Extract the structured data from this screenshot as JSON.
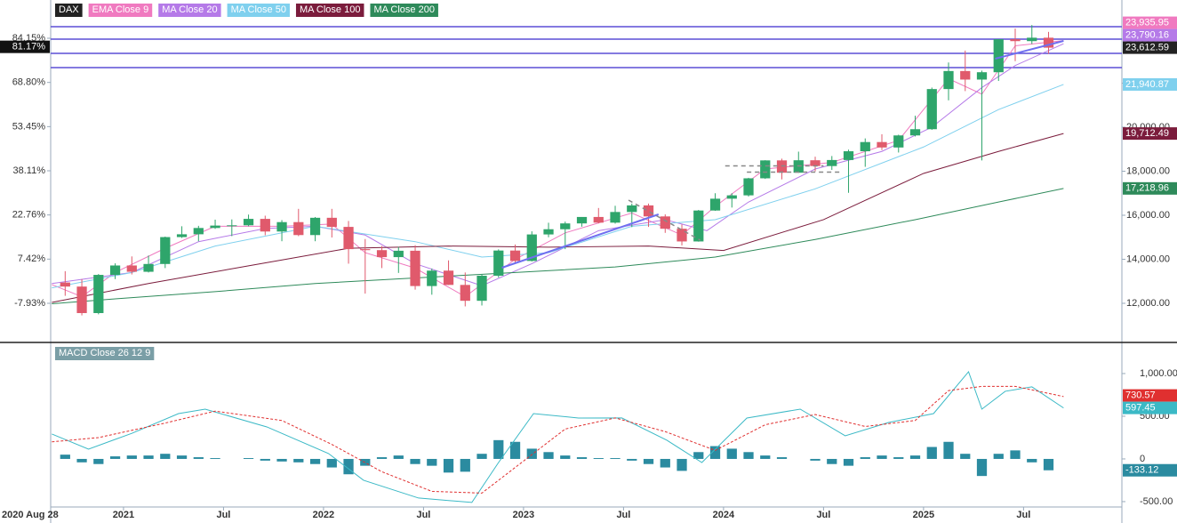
{
  "chart_data": {
    "type": "candlestick",
    "symbol": "DAX",
    "symbol_color": "#222222",
    "up_color": "#2ea56b",
    "down_color": "#e05a6c",
    "open": [
      12945,
      12760,
      11556,
      13291,
      13718,
      13432,
      13786,
      15008,
      15136,
      15421,
      15531,
      15544,
      15835,
      15261,
      15688,
      15100,
      15885,
      15471,
      14461,
      14415,
      14098,
      14388,
      12784,
      13484,
      12835,
      12114,
      13253,
      14397,
      13924,
      15128,
      15365,
      15629,
      15922,
      15664,
      16148,
      16447,
      15947,
      15387,
      14810,
      16215,
      16752,
      16904,
      17678,
      18492,
      17932,
      18498,
      18235,
      18509,
      18907,
      19325,
      19078,
      19626,
      19909,
      21732,
      22551,
      22163,
      22497,
      23997,
      23910,
      24065
    ],
    "high": [
      13460,
      13100,
      13330,
      13815,
      14130,
      14170,
      15030,
      15500,
      15520,
      15800,
      15810,
      16030,
      15980,
      15780,
      16290,
      15920,
      16290,
      15740,
      14920,
      14600,
      14560,
      14640,
      13580,
      13950,
      13400,
      13300,
      14450,
      14670,
      15270,
      15660,
      15710,
      15920,
      16330,
      16430,
      16530,
      16530,
      16040,
      15580,
      16240,
      17000,
      17000,
      17700,
      18500,
      18570,
      18890,
      18660,
      18690,
      18980,
      19490,
      19680,
      19660,
      20520,
      21800,
      22940,
      23480,
      22570,
      24000,
      24480,
      24640,
      24330
    ],
    "low": [
      12340,
      11450,
      11500,
      13100,
      13310,
      13400,
      13600,
      14970,
      14820,
      15380,
      15050,
      15500,
      15090,
      14820,
      15050,
      14820,
      14990,
      13800,
      12440,
      13600,
      13380,
      12620,
      12390,
      12830,
      11860,
      11900,
      13170,
      13790,
      13900,
      15000,
      14460,
      15480,
      15630,
      15620,
      15460,
      15470,
      15200,
      14630,
      14800,
      16200,
      16350,
      16850,
      17650,
      17630,
      17930,
      17990,
      18060,
      17020,
      18200,
      18960,
      18850,
      19580,
      19880,
      21220,
      21640,
      18490,
      22100,
      23000,
      23780,
      23330
    ],
    "close": [
      12760,
      11556,
      13291,
      13718,
      13432,
      13786,
      15008,
      15136,
      15421,
      15531,
      15544,
      15835,
      15261,
      15688,
      15100,
      15885,
      15471,
      14461,
      14415,
      14098,
      14388,
      12784,
      13484,
      12835,
      12114,
      13253,
      14397,
      13924,
      15128,
      15365,
      15629,
      15922,
      15664,
      16148,
      16447,
      15947,
      15387,
      14810,
      16215,
      16752,
      16904,
      17678,
      18492,
      17932,
      18498,
      18235,
      18509,
      18907,
      19325,
      19078,
      19626,
      19909,
      21732,
      22551,
      22163,
      22497,
      23997,
      23910,
      24065,
      23612.59
    ],
    "close_last_label": "23,612.59",
    "pct_last": 81.17,
    "pct_last_label": "81.17%",
    "xlim": [
      -0.87,
      63.4
    ],
    "xticks": [
      {
        "value": -0.87,
        "label": "2020 Aug 28"
      },
      {
        "value": 3.5,
        "label": "2021"
      },
      {
        "value": 9.5,
        "label": "Jul"
      },
      {
        "value": 15.5,
        "label": "2022"
      },
      {
        "value": 21.5,
        "label": "Jul"
      },
      {
        "value": 27.5,
        "label": "2023"
      },
      {
        "value": 33.5,
        "label": "Jul"
      },
      {
        "value": 39.5,
        "label": "2024"
      },
      {
        "value": 45.5,
        "label": "Jul"
      },
      {
        "value": 51.5,
        "label": "2025"
      },
      {
        "value": 57.5,
        "label": "Jul"
      }
    ],
    "ylim": [
      10222,
      25778
    ],
    "yticks": [
      {
        "value": 12000,
        "label": "12,000.00"
      },
      {
        "value": 14000,
        "label": "14,000.00"
      },
      {
        "value": 16000,
        "label": "16,000.00"
      },
      {
        "value": 18000,
        "label": "18,000.00"
      },
      {
        "value": 20000,
        "label": "20,000.00"
      },
      {
        "value": 22000,
        "label": "22,000.00"
      },
      {
        "value": 24000,
        "label": "24,000.00"
      }
    ],
    "y2lim": [
      -21.53,
      97.44
    ],
    "y2ticks": [
      {
        "value": -7.93,
        "label": "-7.93%"
      },
      {
        "value": 7.42,
        "label": "7.42%"
      },
      {
        "value": 22.76,
        "label": "22.76%"
      },
      {
        "value": 38.11,
        "label": "38.11%"
      },
      {
        "value": 53.45,
        "label": "53.45%"
      },
      {
        "value": 68.8,
        "label": "68.80%"
      },
      {
        "value": 84.15,
        "label": "84.15%"
      }
    ],
    "series": [
      {
        "name": "EMA Close 9",
        "color": "#f07ac0",
        "x": [
          -0.8,
          1,
          3,
          6,
          9,
          13,
          16,
          18,
          21,
          24,
          27,
          30,
          34,
          37,
          39,
          42,
          46,
          50,
          53,
          55,
          57,
          59.9
        ],
        "values": [
          12850,
          12300,
          13400,
          14500,
          15500,
          15500,
          15600,
          14300,
          13600,
          12300,
          14000,
          15200,
          16100,
          15100,
          16400,
          18100,
          18400,
          19400,
          22200,
          21500,
          23700,
          23935.95
        ],
        "last_label": "23,935.95"
      },
      {
        "name": "MA Close 20",
        "color": "#b57ae8",
        "x": [
          -0.8,
          4,
          8,
          12,
          15,
          18,
          21,
          25,
          28,
          32,
          36,
          38.5,
          41,
          45,
          49,
          52,
          55,
          57,
          59.9
        ],
        "values": [
          12900,
          13400,
          14800,
          15400,
          15500,
          15100,
          13800,
          12800,
          13800,
          15300,
          15800,
          15300,
          16600,
          18100,
          18900,
          20000,
          21800,
          22800,
          23790.16
        ],
        "last_label": "23,790.16"
      },
      {
        "name": "MA Close 50",
        "color": "#7fd0ee",
        "x": [
          -0.8,
          4,
          9,
          15,
          21,
          25,
          29,
          34,
          39,
          45,
          51.5,
          56,
          59.9
        ],
        "values": [
          12700,
          13400,
          14600,
          15500,
          14800,
          14100,
          14300,
          15500,
          15800,
          17200,
          19100,
          20800,
          21940.87
        ],
        "last_label": "21,940.87"
      },
      {
        "name": "MA Close 100",
        "color": "#7b1c3c",
        "x": [
          -0.8,
          5,
          11,
          17,
          23,
          29,
          35,
          39.5,
          45.5,
          51.5,
          56,
          59.9
        ],
        "values": [
          12040,
          12900,
          13700,
          14500,
          14600,
          14550,
          14600,
          14400,
          15800,
          17900,
          18900,
          19712.49
        ],
        "last_label": "19,712.49"
      },
      {
        "name": "MA Close 200",
        "color": "#2e8a5a",
        "x": [
          -0.8,
          3,
          9,
          15,
          21,
          27,
          33,
          39,
          45,
          51,
          56,
          59.9
        ],
        "values": [
          11980,
          12200,
          12530,
          12900,
          13150,
          13400,
          13650,
          14100,
          14900,
          15800,
          16600,
          17218.96
        ],
        "last_label": "17,218.96"
      }
    ],
    "hlines": [
      24566,
      24000,
      23354,
      22707
    ],
    "hline_color": "#5b4fd6",
    "trendlines": [
      {
        "x": [
          26.2,
          35.6
        ],
        "y": [
          13616,
          16040
        ],
        "color": "#6f6ff0",
        "dashed": false
      },
      {
        "x": [
          55.8,
          59.9
        ],
        "y": [
          23111,
          23919
        ],
        "color": "#6f6ff0",
        "dashed": false
      },
      {
        "x": [
          33.8,
          38.1
        ],
        "y": [
          16687,
          14869
        ],
        "color": "#888888",
        "dashed": true
      },
      {
        "x": [
          39.6,
          45.5
        ],
        "y": [
          18240,
          18240
        ],
        "color": "#888888",
        "dashed": true
      },
      {
        "x": [
          40.9,
          46.6
        ],
        "y": [
          17960,
          17960
        ],
        "color": "#888888",
        "dashed": true
      }
    ],
    "macd": {
      "title": "MACD Close 26 12 9",
      "title_color": "#7a9ea6",
      "ylim": [
        -563,
        1333
      ],
      "yticks": [
        {
          "value": 1000,
          "label": "1,000.00"
        },
        {
          "value": 500,
          "label": "500.00"
        },
        0,
        {
          "value": -500,
          "label": "-500.00"
        }
      ],
      "macd_line": {
        "color": "#3bb9c6",
        "x": [
          -0.8,
          1.4,
          4,
          6.8,
          8.4,
          12.1,
          15.8,
          17.9,
          21.2,
          24.4,
          26,
          28.1,
          30.8,
          33.4,
          36.1,
          38.2,
          40.9,
          44.1,
          46.8,
          49.4,
          52.1,
          54.2,
          55,
          56.4,
          58,
          59.9
        ],
        "values": [
          292,
          115,
          300,
          531,
          583,
          375,
          63,
          -250,
          -458,
          -510,
          -42,
          531,
          479,
          480,
          219,
          -42,
          479,
          583,
          271,
          427,
          531,
          1021,
          583,
          792,
          844,
          597.45
        ],
        "last_label": "597.45"
      },
      "signal": {
        "color": "#e03030",
        "x": [
          -0.8,
          2,
          6,
          9,
          13,
          16,
          19,
          22,
          25,
          27,
          30,
          33,
          36,
          39,
          42,
          45,
          48,
          51,
          53,
          55,
          57,
          59.9
        ],
        "values": [
          200,
          250,
          420,
          560,
          450,
          170,
          -150,
          -380,
          -400,
          -100,
          350,
          480,
          320,
          100,
          400,
          520,
          380,
          450,
          800,
          850,
          850,
          730.57
        ],
        "last_label": "730.57"
      },
      "histogram": {
        "color": "#2b8ba0",
        "values": [
          50,
          -40,
          -60,
          30,
          40,
          40,
          60,
          40,
          20,
          10,
          0,
          10,
          -20,
          -30,
          -40,
          -60,
          -100,
          -180,
          -80,
          20,
          40,
          -60,
          -80,
          -160,
          -150,
          60,
          220,
          200,
          120,
          80,
          40,
          20,
          10,
          10,
          -20,
          -60,
          -100,
          -140,
          80,
          150,
          120,
          80,
          40,
          20,
          0,
          -20,
          -60,
          -80,
          20,
          40,
          20,
          40,
          140,
          200,
          60,
          -200,
          60,
          100,
          -40,
          -133.12
        ],
        "last_label": "-133.12"
      }
    }
  }
}
